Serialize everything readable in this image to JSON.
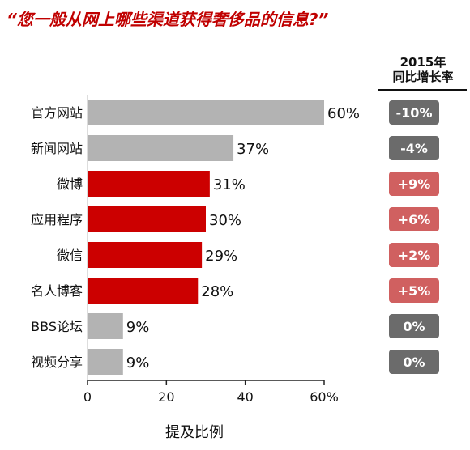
{
  "title": "“您一般从网上哪些渠道获得奢侈品的信息?”",
  "growth_header": {
    "year": "2015年",
    "label": "同比增长率"
  },
  "chart_data": {
    "type": "bar",
    "orientation": "horizontal",
    "title": "“您一般从网上哪些渠道获得奢侈品的信息?”",
    "xlabel": "提及比例",
    "ylabel": "",
    "xlim": [
      0,
      60
    ],
    "xticks": [
      "0",
      "20",
      "40",
      "60%"
    ],
    "grid": false,
    "categories": [
      "官方网站",
      "新闻网站",
      "微博",
      "应用程序",
      "微信",
      "名人博客",
      "BBS论坛",
      "视频分享"
    ],
    "values": [
      60,
      37,
      31,
      30,
      29,
      28,
      9,
      9
    ],
    "value_labels": [
      "60%",
      "37%",
      "31%",
      "30%",
      "29%",
      "28%",
      "9%",
      "9%"
    ],
    "growth_2015": [
      "-10%",
      "-4%",
      "+9%",
      "+6%",
      "+2%",
      "+5%",
      "0%",
      "0%"
    ],
    "colors": {
      "highlight_bar": "#cc0000",
      "neutral_bar": "#b3b3b3",
      "badge_negative": "#6b6b6b",
      "badge_positive": "#d06060"
    },
    "highlighted": [
      false,
      false,
      true,
      true,
      true,
      true,
      false,
      false
    ]
  }
}
